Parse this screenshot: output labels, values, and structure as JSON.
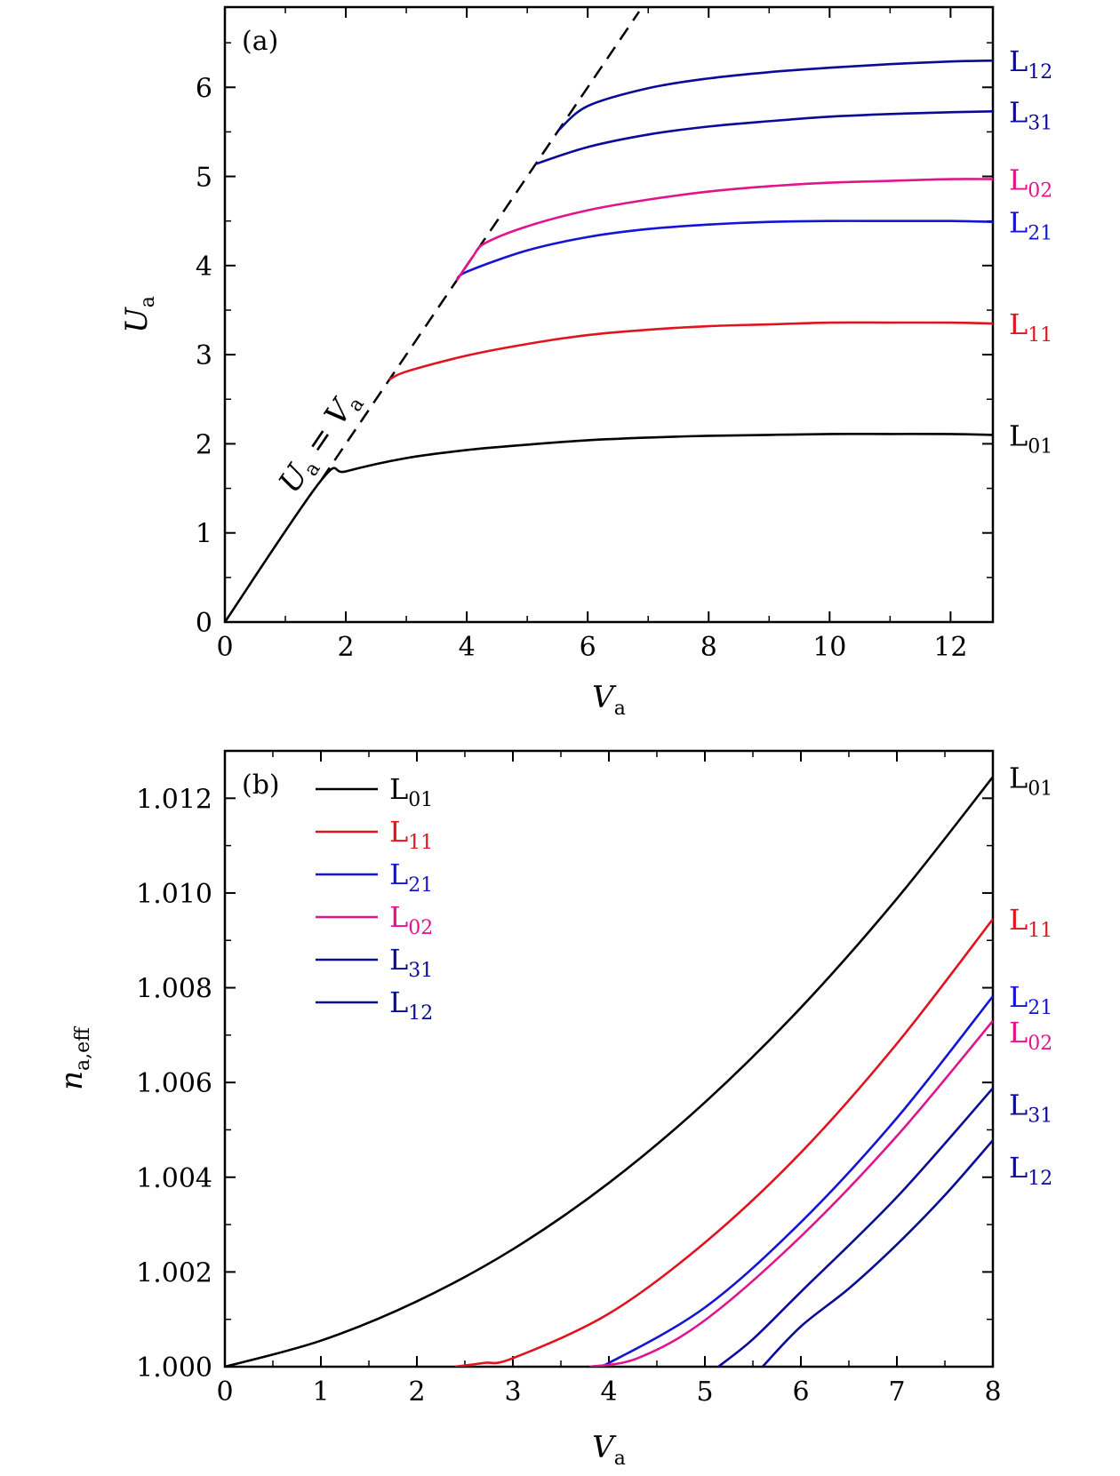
{
  "chart_data": [
    {
      "type": "line",
      "panel_label": "(a)",
      "xlabel": "V",
      "xlabel_sub": "a",
      "ylabel": "U",
      "ylabel_sub": "a",
      "xlim": [
        0,
        12.7
      ],
      "ylim": [
        0,
        6.9
      ],
      "xticks": [
        0,
        2,
        4,
        6,
        8,
        10,
        12
      ],
      "yticks": [
        0,
        1,
        2,
        3,
        4,
        5,
        6
      ],
      "xminor": [
        1,
        3,
        5,
        7,
        9,
        11
      ],
      "yminor": [
        0.5,
        1.5,
        2.5,
        3.5,
        4.5,
        5.5,
        6.5
      ],
      "dashed_line": {
        "label": "U",
        "label_sub": "a",
        "equals": " = ",
        "label2": "V",
        "label2_sub": "a",
        "x": [
          1.6,
          6.85
        ],
        "y": [
          1.6,
          6.85
        ]
      },
      "series": [
        {
          "name": "L",
          "sub": "01",
          "color": "#000000",
          "x": [
            0,
            1.58,
            2,
            3,
            4,
            5,
            6,
            7,
            8,
            9,
            10,
            11,
            12,
            12.7
          ],
          "y": [
            0,
            1.58,
            1.69,
            1.84,
            1.93,
            1.99,
            2.04,
            2.07,
            2.09,
            2.1,
            2.11,
            2.11,
            2.11,
            2.1
          ]
        },
        {
          "name": "L",
          "sub": "11",
          "color": "#e0141e",
          "x": [
            2.72,
            3,
            4,
            5,
            6,
            7,
            8,
            9,
            10,
            11,
            12,
            12.7
          ],
          "y": [
            2.72,
            2.81,
            2.99,
            3.12,
            3.22,
            3.28,
            3.32,
            3.34,
            3.36,
            3.36,
            3.36,
            3.35
          ]
        },
        {
          "name": "L",
          "sub": "21",
          "color": "#1414d2",
          "x": [
            3.83,
            4,
            5,
            6,
            7,
            8,
            9,
            10,
            11,
            12,
            12.7
          ],
          "y": [
            3.83,
            3.93,
            4.17,
            4.32,
            4.41,
            4.46,
            4.49,
            4.5,
            4.5,
            4.5,
            4.49
          ]
        },
        {
          "name": "L",
          "sub": "02",
          "color": "#e0148c",
          "x": [
            3.83,
            4.1,
            4.3,
            5,
            6,
            7,
            8,
            9,
            10,
            11,
            12,
            12.7
          ],
          "y": [
            3.83,
            4.1,
            4.25,
            4.44,
            4.62,
            4.74,
            4.83,
            4.89,
            4.93,
            4.95,
            4.97,
            4.97
          ]
        },
        {
          "name": "L",
          "sub": "31",
          "color": "#0a0a96",
          "x": [
            5.14,
            6,
            7,
            8,
            9,
            10,
            11,
            12,
            12.7
          ],
          "y": [
            5.14,
            5.33,
            5.47,
            5.56,
            5.62,
            5.67,
            5.7,
            5.72,
            5.73
          ]
        },
        {
          "name": "L",
          "sub": "12",
          "color": "#0a0a96",
          "x": [
            5.52,
            6,
            7,
            8,
            9,
            10,
            11,
            12,
            12.7
          ],
          "y": [
            5.52,
            5.79,
            5.99,
            6.1,
            6.17,
            6.22,
            6.26,
            6.29,
            6.3
          ]
        }
      ]
    },
    {
      "type": "line",
      "panel_label": "(b)",
      "xlabel": "V",
      "xlabel_sub": "a",
      "ylabel": "n",
      "ylabel_sub": "a,eff",
      "xlim": [
        0,
        8
      ],
      "ylim": [
        1.0,
        1.013
      ],
      "xticks": [
        0,
        1,
        2,
        3,
        4,
        5,
        6,
        7,
        8
      ],
      "xtick_labels": [
        "0",
        "1",
        "2",
        "3",
        "4",
        "5",
        "6",
        "7",
        "8"
      ],
      "yticks": [
        1.0,
        1.002,
        1.004,
        1.006,
        1.008,
        1.01,
        1.012
      ],
      "ytick_labels": [
        "1.000",
        "1.002",
        "1.004",
        "1.006",
        "1.008",
        "1.010",
        "1.012"
      ],
      "xminor": [
        0.5,
        1.5,
        2.5,
        3.5,
        4.5,
        5.5,
        6.5,
        7.5
      ],
      "yminor": [
        1.001,
        1.003,
        1.005,
        1.007,
        1.009,
        1.011
      ],
      "legend_position": "top-left",
      "series": [
        {
          "name": "L",
          "sub": "01",
          "color": "#000000",
          "x": [
            0,
            1,
            2,
            3,
            4,
            5,
            6,
            7,
            8
          ],
          "y": [
            1.0,
            1.00055,
            1.00138,
            1.00248,
            1.00388,
            1.00558,
            1.00758,
            1.00988,
            1.01245
          ]
        },
        {
          "name": "L",
          "sub": "11",
          "color": "#e0141e",
          "x": [
            2.4,
            2.7,
            3,
            4,
            5,
            6,
            7,
            8
          ],
          "y": [
            1.0,
            1.00008,
            1.00018,
            1.00112,
            1.00262,
            1.00452,
            1.00682,
            1.00945
          ]
        },
        {
          "name": "L",
          "sub": "21",
          "color": "#1414d2",
          "x": [
            3.83,
            4,
            5,
            6,
            7,
            8
          ],
          "y": [
            1.0,
            1.00008,
            1.00125,
            1.00305,
            1.00525,
            1.00782
          ]
        },
        {
          "name": "L",
          "sub": "02",
          "color": "#e0148c",
          "x": [
            3.8,
            4.3,
            5,
            6,
            7,
            8
          ],
          "y": [
            1.0,
            1.00018,
            1.00098,
            1.00275,
            1.00487,
            1.0073
          ]
        },
        {
          "name": "L",
          "sub": "31",
          "color": "#0a0a96",
          "x": [
            5.14,
            5.5,
            6,
            7,
            8
          ],
          "y": [
            1.0,
            1.00058,
            1.00158,
            1.00358,
            1.00588
          ]
        },
        {
          "name": "L",
          "sub": "12",
          "color": "#0a0a96",
          "x": [
            5.6,
            6,
            6.5,
            7,
            7.5,
            8
          ],
          "y": [
            1.0,
            1.00085,
            1.00165,
            1.00258,
            1.00362,
            1.00478
          ]
        }
      ]
    }
  ]
}
